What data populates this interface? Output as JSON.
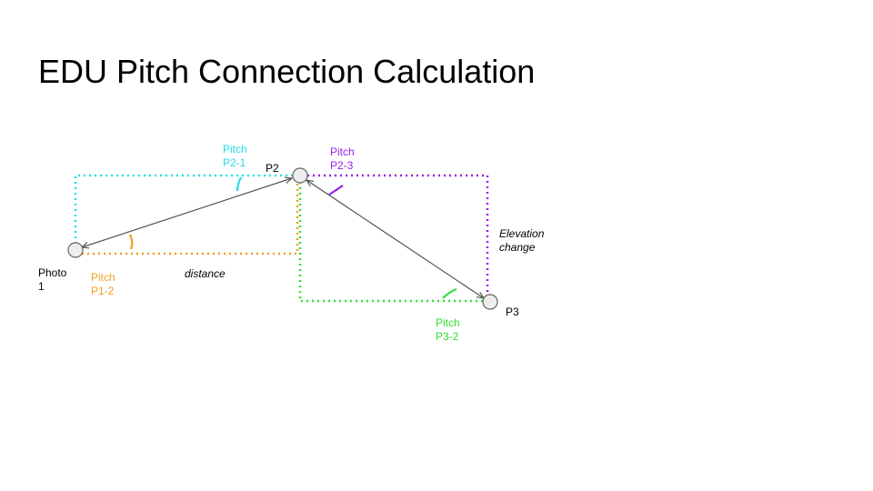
{
  "slide": {
    "title": "EDU Pitch Connection Calculation"
  },
  "labels": {
    "pitch_p2_1_line1": "Pitch",
    "pitch_p2_1_line2": "P2-1",
    "pitch_p2_3_line1": "Pitch",
    "pitch_p2_3_line2": "P2-3",
    "p2": "P2",
    "photo1_line1": "Photo",
    "photo1_line2": "1",
    "pitch_p1_2_line1": "Pitch",
    "pitch_p1_2_line2": "P1-2",
    "distance": "distance",
    "elevation_line1": "Elevation",
    "elevation_line2": "change",
    "p3": "P3",
    "pitch_p3_2_line1": "Pitch",
    "pitch_p3_2_line2": "P3-2"
  },
  "colors": {
    "cyan": "#22dde8",
    "purple": "#9b1fe8",
    "orange": "#f0a020",
    "green": "#33dd33",
    "arrow": "#555555",
    "node_fill": "#eeeeee",
    "node_stroke": "#666666"
  }
}
